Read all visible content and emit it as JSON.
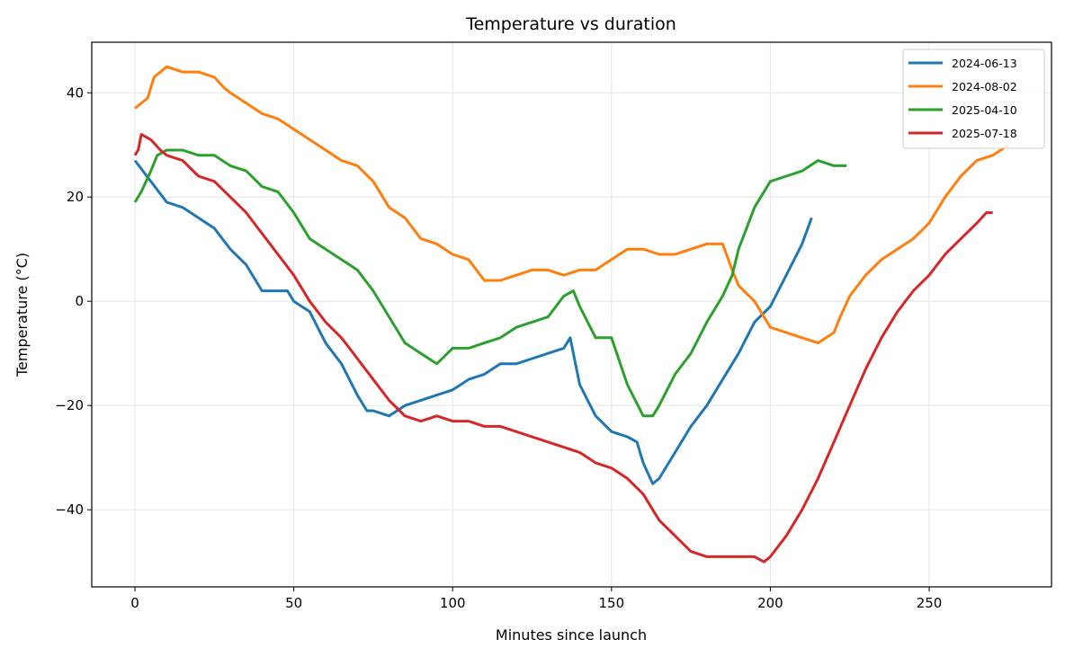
{
  "chart_data": {
    "type": "line",
    "title": "Temperature vs duration",
    "xlabel": "Minutes since launch",
    "ylabel": "Temperature (°C)",
    "xlim": [
      -13.6,
      288.5
    ],
    "ylim": [
      -54.8,
      49.7
    ],
    "xticks": [
      0,
      50,
      100,
      150,
      200,
      250
    ],
    "yticks": [
      -40,
      -20,
      0,
      20,
      40
    ],
    "grid": true,
    "legend_placement": "top-right",
    "series": [
      {
        "name": "2024-06-13",
        "color": "#1f77b4",
        "x": [
          0,
          5,
          10,
          15,
          20,
          25,
          30,
          35,
          40,
          45,
          48,
          50,
          55,
          60,
          65,
          70,
          73,
          75,
          80,
          85,
          90,
          95,
          100,
          105,
          110,
          115,
          120,
          125,
          130,
          135,
          137,
          140,
          145,
          150,
          155,
          158,
          160,
          163,
          165,
          170,
          175,
          180,
          185,
          190,
          195,
          200,
          205,
          210,
          213
        ],
        "y": [
          27,
          23,
          19,
          18,
          16,
          14,
          10,
          7,
          2,
          2,
          2,
          0,
          -2,
          -8,
          -12,
          -18,
          -21,
          -21,
          -22,
          -20,
          -19,
          -18,
          -17,
          -15,
          -14,
          -12,
          -12,
          -11,
          -10,
          -9,
          -7,
          -16,
          -22,
          -25,
          -26,
          -27,
          -31,
          -35,
          -34,
          -29,
          -24,
          -20,
          -15,
          -10,
          -4,
          -1,
          5,
          11,
          16
        ]
      },
      {
        "name": "2024-08-02",
        "color": "#ff7f0e",
        "x": [
          0,
          4,
          6,
          10,
          15,
          20,
          25,
          28,
          30,
          35,
          40,
          45,
          50,
          55,
          60,
          65,
          70,
          75,
          80,
          85,
          90,
          95,
          100,
          105,
          110,
          115,
          120,
          125,
          130,
          135,
          140,
          145,
          150,
          155,
          160,
          165,
          170,
          175,
          180,
          185,
          188,
          190,
          195,
          200,
          205,
          210,
          215,
          220,
          222,
          225,
          230,
          235,
          240,
          245,
          250,
          255,
          260,
          265,
          270,
          275
        ],
        "y": [
          37,
          39,
          43,
          45,
          44,
          44,
          43,
          41,
          40,
          38,
          36,
          35,
          33,
          31,
          29,
          27,
          26,
          23,
          18,
          16,
          12,
          11,
          9,
          8,
          4,
          4,
          5,
          6,
          6,
          5,
          6,
          6,
          8,
          10,
          10,
          9,
          9,
          10,
          11,
          11,
          6,
          3,
          0,
          -5,
          -6,
          -7,
          -8,
          -6,
          -3,
          1,
          5,
          8,
          10,
          12,
          15,
          20,
          24,
          27,
          28,
          30
        ]
      },
      {
        "name": "2025-04-10",
        "color": "#2ca02c",
        "x": [
          0,
          2,
          5,
          7,
          10,
          15,
          20,
          25,
          30,
          35,
          40,
          45,
          50,
          55,
          60,
          65,
          70,
          75,
          80,
          85,
          90,
          95,
          100,
          105,
          110,
          115,
          120,
          125,
          130,
          135,
          138,
          140,
          145,
          150,
          155,
          160,
          163,
          165,
          170,
          175,
          180,
          185,
          188,
          190,
          195,
          200,
          205,
          210,
          215,
          220,
          224
        ],
        "y": [
          19,
          21,
          25,
          28,
          29,
          29,
          28,
          28,
          26,
          25,
          22,
          21,
          17,
          12,
          10,
          8,
          6,
          2,
          -3,
          -8,
          -10,
          -12,
          -9,
          -9,
          -8,
          -7,
          -5,
          -4,
          -3,
          1,
          2,
          -1,
          -7,
          -7,
          -16,
          -22,
          -22,
          -20,
          -14,
          -10,
          -4,
          1,
          5,
          10,
          18,
          23,
          24,
          25,
          27,
          26,
          26
        ]
      },
      {
        "name": "2025-07-18",
        "color": "#d62728",
        "x": [
          0,
          1,
          2,
          5,
          8,
          10,
          15,
          20,
          25,
          30,
          35,
          40,
          45,
          50,
          55,
          60,
          65,
          70,
          75,
          80,
          85,
          90,
          95,
          100,
          105,
          110,
          115,
          120,
          125,
          130,
          135,
          140,
          145,
          150,
          155,
          160,
          165,
          170,
          175,
          180,
          185,
          190,
          195,
          198,
          200,
          205,
          210,
          215,
          220,
          225,
          230,
          235,
          240,
          245,
          250,
          255,
          260,
          265,
          268,
          270
        ],
        "y": [
          28,
          29,
          32,
          31,
          29,
          28,
          27,
          24,
          23,
          20,
          17,
          13,
          9,
          5,
          0,
          -4,
          -7,
          -11,
          -15,
          -19,
          -22,
          -23,
          -22,
          -23,
          -23,
          -24,
          -24,
          -25,
          -26,
          -27,
          -28,
          -29,
          -31,
          -32,
          -34,
          -37,
          -42,
          -45,
          -48,
          -49,
          -49,
          -49,
          -49,
          -50,
          -49,
          -45,
          -40,
          -34,
          -27,
          -20,
          -13,
          -7,
          -2,
          2,
          5,
          9,
          12,
          15,
          17,
          17
        ]
      }
    ]
  }
}
